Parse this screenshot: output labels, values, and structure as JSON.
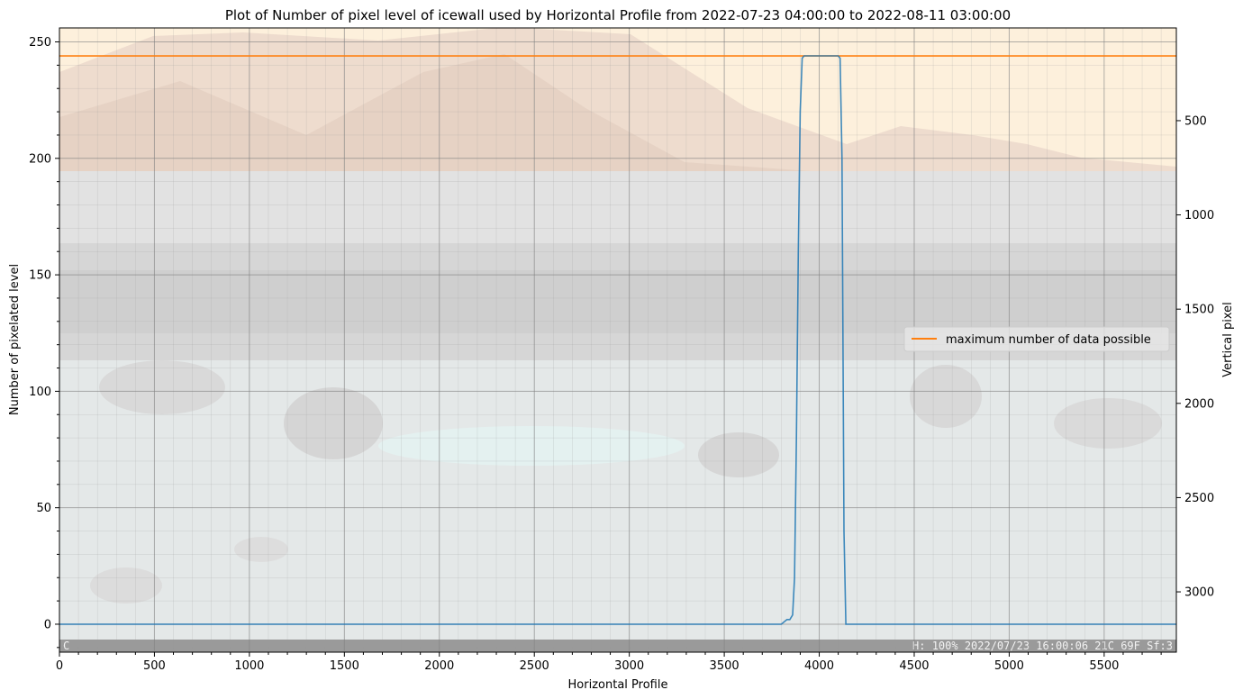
{
  "chart_data": {
    "type": "line",
    "title": "Plot of Number of pixel level of icewall used by Horizontal Profile from 2022-07-23 04:00:00 to 2022-08-11 03:00:00",
    "xlabel": "Horizontal Profile",
    "ylabel": "Number of pixelated level",
    "y2label": "Vertical pixel",
    "xlim": [
      0,
      5880
    ],
    "ylim": [
      -12,
      256
    ],
    "y2lim": [
      3320,
      8
    ],
    "xticks": [
      "0",
      "500",
      "1000",
      "1500",
      "2000",
      "2500",
      "3000",
      "3500",
      "4000",
      "4500",
      "5000",
      "5500"
    ],
    "xtick_values": [
      0,
      500,
      1000,
      1500,
      2000,
      2500,
      3000,
      3500,
      4000,
      4500,
      5000,
      5500
    ],
    "yticks": [
      "0",
      "50",
      "100",
      "150",
      "200",
      "250"
    ],
    "ytick_values": [
      0,
      50,
      100,
      150,
      200,
      250
    ],
    "y2ticks": [
      "500",
      "1000",
      "1500",
      "2000",
      "2500",
      "3000"
    ],
    "y2tick_values": [
      500,
      1000,
      1500,
      2000,
      2500,
      3000
    ],
    "grid": true,
    "legend_position": "center-right",
    "series": [
      {
        "color": "#1f77b4",
        "x": [
          0,
          3800,
          3830,
          3845,
          3860,
          3870,
          3880,
          3890,
          3900,
          3910,
          3920,
          4100,
          4110,
          4120,
          4130,
          4140,
          5880
        ],
        "y": [
          0,
          0,
          2,
          2,
          4,
          20,
          80,
          160,
          220,
          243,
          244,
          244,
          243,
          200,
          40,
          0,
          0
        ]
      }
    ],
    "reference_lines": [
      {
        "name": "maximum number of data possible",
        "y": 244,
        "color": "#ff7f0e"
      }
    ]
  },
  "overlay": {
    "left_text": "C",
    "right_text": "H: 100%      2022/07/23 16:00:06  21C 69F  Sf:3"
  },
  "colors": {
    "series": "#1f77b4",
    "reference": "#ff7f0e",
    "sky": "#fdf0dc",
    "mountain": "#ecd9cc",
    "ice": "#d8d8d8",
    "ground": "#e8eded",
    "strip": "#9a9a9a"
  }
}
